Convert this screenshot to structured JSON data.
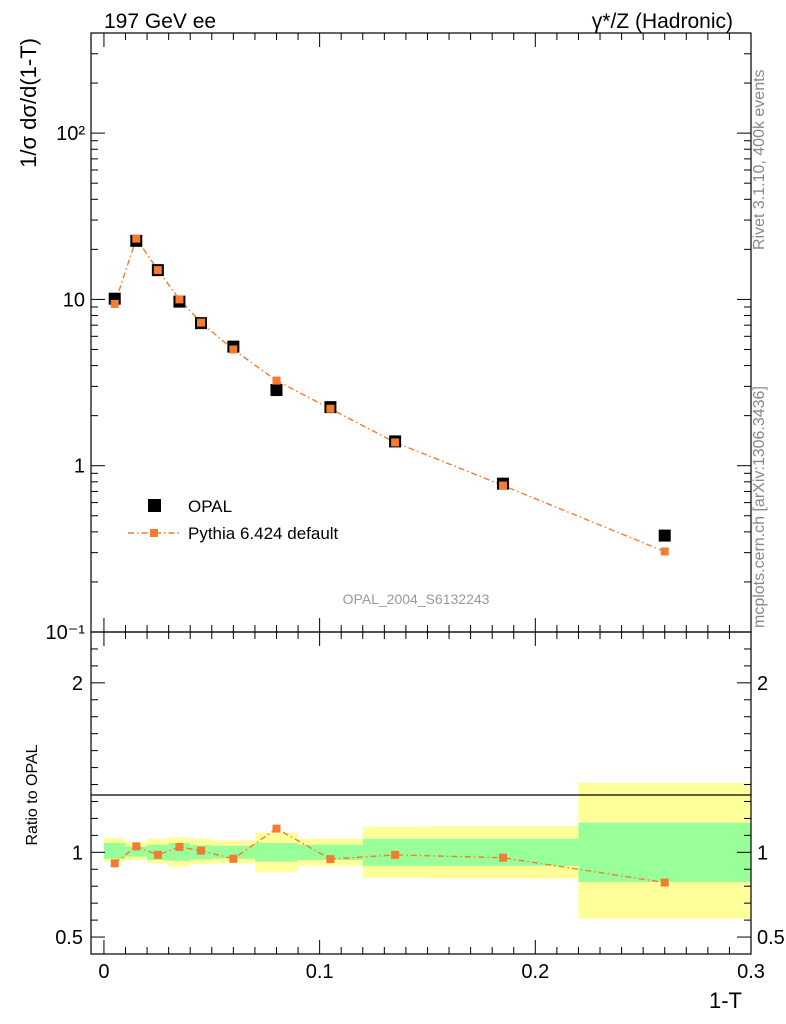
{
  "header": {
    "left": "197 GeV ee",
    "right_sup": "γ*/Z (Hadronic)"
  },
  "side_labels": {
    "rivet": "Rivet 3.1.10,  400k events",
    "mcplots": "mcplots.cern.ch [arXiv:1306.3436]"
  },
  "analysis_id": "OPAL_2004_S6132243",
  "legend": {
    "data_label": "OPAL",
    "mc_label": "Pythia 6.424 default",
    "placement": "lower-left"
  },
  "colors": {
    "data": "#000000",
    "mc": "#f47b31",
    "band_inner": "#99ff99",
    "band_outer": "#ffff99",
    "side_text": "#888888"
  },
  "chart_data": [
    {
      "type": "scatter",
      "panel": "main",
      "ylabel": "1/σ dσ/d(1-T)",
      "yscale": "log",
      "ylim": [
        0.1,
        400
      ],
      "xlim": [
        -0.006,
        0.3
      ],
      "y_tick_labels": [
        "10⁻¹",
        "1",
        "10",
        "10²"
      ],
      "series": [
        {
          "name": "OPAL",
          "x": [
            0.005,
            0.015,
            0.025,
            0.035,
            0.045,
            0.06,
            0.08,
            0.105,
            0.135,
            0.185,
            0.26
          ],
          "values": [
            10.1,
            22.5,
            15.0,
            9.7,
            7.2,
            5.2,
            2.85,
            2.25,
            1.4,
            0.78,
            0.38
          ]
        },
        {
          "name": "Pythia 6.424 default",
          "x": [
            0.005,
            0.015,
            0.025,
            0.035,
            0.045,
            0.06,
            0.08,
            0.105,
            0.135,
            0.185,
            0.26
          ],
          "values": [
            9.4,
            23.2,
            15.0,
            10.0,
            7.25,
            5.0,
            3.25,
            2.2,
            1.38,
            0.76,
            0.305
          ]
        }
      ]
    },
    {
      "type": "line",
      "panel": "ratio",
      "ylabel": "Ratio to OPAL",
      "xlabel": "1-T",
      "ylim": [
        0.4,
        2.3
      ],
      "xlim": [
        -0.006,
        0.3
      ],
      "x_tick_labels": [
        "0",
        "0.1",
        "0.2",
        "0.3"
      ],
      "y_tick_labels": [
        "0.5",
        "1",
        "2"
      ],
      "bins": [
        {
          "lo": 0.0,
          "hi": 0.01,
          "inner": [
            0.962,
            1.055
          ],
          "outer": [
            0.945,
            1.085
          ]
        },
        {
          "lo": 0.01,
          "hi": 0.02,
          "inner": [
            0.975,
            1.035
          ],
          "outer": [
            0.955,
            1.06
          ]
        },
        {
          "lo": 0.02,
          "hi": 0.03,
          "inner": [
            0.955,
            1.045
          ],
          "outer": [
            0.935,
            1.08
          ]
        },
        {
          "lo": 0.03,
          "hi": 0.04,
          "inner": [
            0.95,
            1.055
          ],
          "outer": [
            0.915,
            1.09
          ]
        },
        {
          "lo": 0.04,
          "hi": 0.05,
          "inner": [
            0.958,
            1.042
          ],
          "outer": [
            0.93,
            1.08
          ]
        },
        {
          "lo": 0.05,
          "hi": 0.07,
          "inner": [
            0.962,
            1.038
          ],
          "outer": [
            0.935,
            1.07
          ]
        },
        {
          "lo": 0.07,
          "hi": 0.09,
          "inner": [
            0.945,
            1.055
          ],
          "outer": [
            0.885,
            1.115
          ]
        },
        {
          "lo": 0.09,
          "hi": 0.12,
          "inner": [
            0.955,
            1.045
          ],
          "outer": [
            0.92,
            1.08
          ]
        },
        {
          "lo": 0.12,
          "hi": 0.15,
          "inner": [
            0.92,
            1.08
          ],
          "outer": [
            0.85,
            1.15
          ]
        },
        {
          "lo": 0.15,
          "hi": 0.22,
          "inner": [
            0.92,
            1.08
          ],
          "outer": [
            0.845,
            1.155
          ]
        },
        {
          "lo": 0.22,
          "hi": 0.3,
          "inner": [
            0.825,
            1.175
          ],
          "outer": [
            0.61,
            1.41
          ]
        }
      ],
      "series": [
        {
          "name": "Pythia 6.424 default",
          "x": [
            0.005,
            0.015,
            0.025,
            0.035,
            0.045,
            0.06,
            0.08,
            0.105,
            0.135,
            0.185,
            0.26
          ],
          "values": [
            0.935,
            1.035,
            0.985,
            1.032,
            1.01,
            0.962,
            1.14,
            0.96,
            0.985,
            0.968,
            0.822
          ]
        }
      ]
    }
  ]
}
